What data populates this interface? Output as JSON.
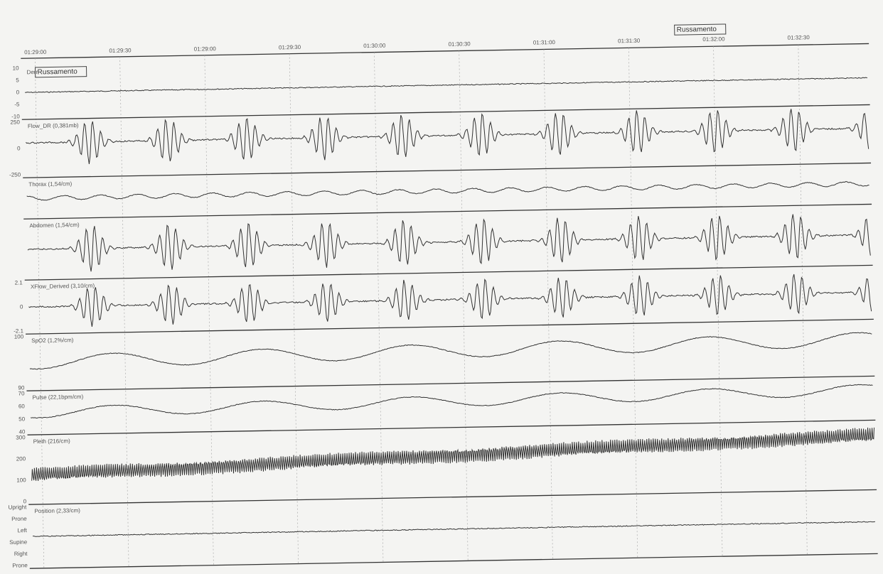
{
  "time_axis": {
    "labels": [
      "01:29:00",
      "01:29:30",
      "01:29:00",
      "01:29:30",
      "01:30:00",
      "01:30:30",
      "01:31:00",
      "01:31:30",
      "01:32:00",
      "01:32:30"
    ]
  },
  "annotations": [
    "Russamento",
    "Russamento"
  ],
  "channels": [
    {
      "label": "Derr",
      "ticks": [
        "10",
        "5",
        "0",
        "-5",
        "-10"
      ]
    },
    {
      "label": "Flow_DR (0,381mb)",
      "ticks": [
        "250",
        "0",
        "-250"
      ]
    },
    {
      "label": "Thorax (1,54/cm)",
      "ticks": []
    },
    {
      "label": "Abdomen (1,54/cm)",
      "ticks": []
    },
    {
      "label": "XFlow_Derived (3,10/cm)",
      "ticks": [
        "2.1",
        "0",
        "-2.1"
      ]
    },
    {
      "label": "SpO2 (1,2%/cm)",
      "ticks": [
        "100",
        "90"
      ]
    },
    {
      "label": "Pulse (22,1bpm/cm)",
      "ticks": [
        "70",
        "60",
        "50",
        "40"
      ]
    },
    {
      "label": "Pleth (216/cm)",
      "ticks": [
        "300",
        "200",
        "100",
        "0"
      ]
    },
    {
      "label": "Position (2,33/cm)",
      "ticks": [
        "Upright",
        "Prone",
        "Left",
        "Supine",
        "Right",
        "Prone"
      ]
    }
  ]
}
